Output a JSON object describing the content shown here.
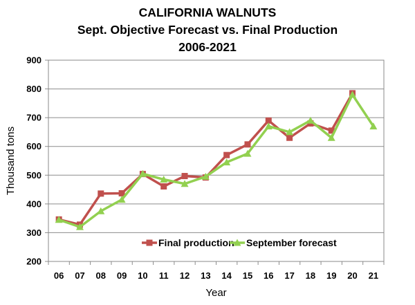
{
  "chart_data": {
    "type": "line",
    "title": "CALIFORNIA WALNUTS",
    "subtitle": "Sept. Objective Forecast vs. Final Production",
    "subtitle2": "2006-2021",
    "xlabel": "Year",
    "ylabel": "Thousand tons",
    "categories": [
      "06",
      "07",
      "08",
      "09",
      "10",
      "11",
      "12",
      "13",
      "14",
      "15",
      "16",
      "17",
      "18",
      "19",
      "20",
      "21"
    ],
    "ylim": [
      200,
      900
    ],
    "yticks": [
      200,
      300,
      400,
      500,
      600,
      700,
      800,
      900
    ],
    "grid": true,
    "legend_position": "bottom-right",
    "series": [
      {
        "name": "Final production",
        "color": "#c0504d",
        "marker": "square",
        "values": [
          346,
          328,
          436,
          437,
          504,
          461,
          497,
          492,
          570,
          607,
          690,
          630,
          680,
          655,
          785,
          null
        ]
      },
      {
        "name": "September forecast",
        "color": "#92d050",
        "marker": "triangle",
        "values": [
          345,
          320,
          375,
          415,
          505,
          485,
          470,
          495,
          545,
          575,
          670,
          650,
          690,
          630,
          780,
          670
        ]
      }
    ]
  }
}
